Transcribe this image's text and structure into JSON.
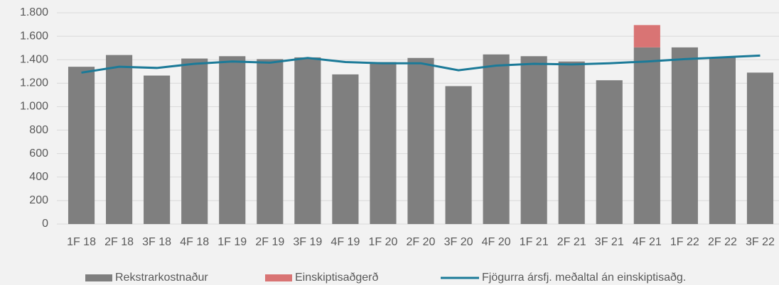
{
  "chart_data": {
    "type": "bar-line",
    "categories": [
      "1F 18",
      "2F 18",
      "3F 18",
      "4F 18",
      "1F 19",
      "2F 19",
      "3F 19",
      "4F 19",
      "1F 20",
      "2F 20",
      "3F 20",
      "4F 20",
      "1F 21",
      "2F 21",
      "3F 21",
      "4F 21",
      "1F 22",
      "2F 22",
      "3F 22"
    ],
    "series": [
      {
        "name": "Rekstrarkostnaður",
        "color": "#7f7f7f",
        "kind": "bar",
        "values": [
          1340,
          1440,
          1265,
          1410,
          1430,
          1405,
          1420,
          1275,
          1380,
          1415,
          1175,
          1445,
          1430,
          1385,
          1225,
          1505,
          1505,
          1420,
          1290
        ]
      },
      {
        "name": "Einskiptisaðgerð",
        "color": "#d97474",
        "kind": "bar",
        "values": [
          null,
          null,
          null,
          null,
          null,
          null,
          null,
          null,
          null,
          null,
          null,
          null,
          null,
          null,
          null,
          190,
          null,
          null,
          null
        ]
      },
      {
        "name": "Fjögurra ársfj. meðaltal án einskiptisaðg.",
        "color": "#1b7a98",
        "kind": "line",
        "values": [
          1290,
          1340,
          1330,
          1365,
          1385,
          1375,
          1415,
          1380,
          1370,
          1370,
          1310,
          1350,
          1365,
          1360,
          1370,
          1385,
          1405,
          1420,
          1435
        ]
      }
    ],
    "stacked": true,
    "ylim": [
      0,
      1800
    ],
    "yticks": [
      0,
      200,
      400,
      600,
      800,
      {
        "value": 1000,
        "label": "1.000"
      },
      {
        "value": 1200,
        "label": "1.200"
      },
      {
        "value": 1400,
        "label": "1.400"
      },
      {
        "value": 1600,
        "label": "1.600"
      },
      {
        "value": 1800,
        "label": "1.800"
      }
    ],
    "grid": true
  }
}
